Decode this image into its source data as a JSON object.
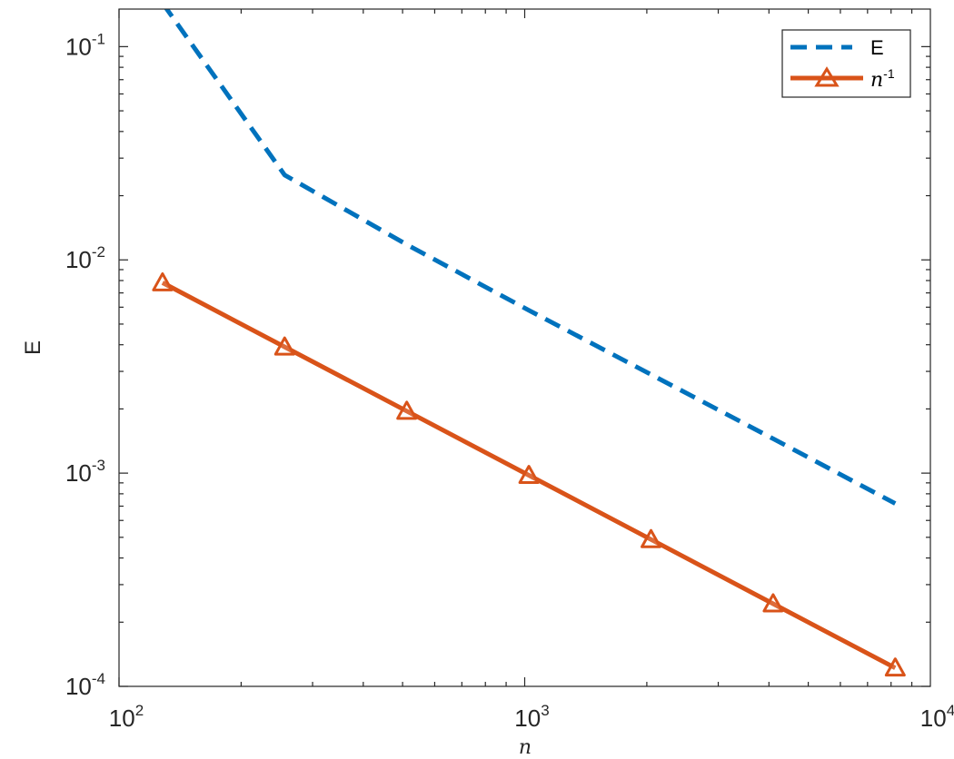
{
  "chart_data": {
    "type": "line",
    "xscale": "log",
    "yscale": "log",
    "xlim": [
      100,
      10000
    ],
    "ylim": [
      0.0001,
      0.15
    ],
    "xlabel": "n",
    "ylabel": "E",
    "x_ticks": [
      {
        "base": "10",
        "exp": "2",
        "value": 100
      },
      {
        "base": "10",
        "exp": "3",
        "value": 1000
      },
      {
        "base": "10",
        "exp": "4",
        "value": 10000
      }
    ],
    "y_ticks": [
      {
        "base": "10",
        "exp": "-4",
        "value": 0.0001
      },
      {
        "base": "10",
        "exp": "-3",
        "value": 0.001
      },
      {
        "base": "10",
        "exp": "-2",
        "value": 0.01
      },
      {
        "base": "10",
        "exp": "-1",
        "value": 0.1
      }
    ],
    "grid": false,
    "legend_position": "top-right",
    "series": [
      {
        "name": "E",
        "color": "#0072BD",
        "line_style": "dashed",
        "marker": "none",
        "x": [
          128,
          256,
          512,
          1024,
          2048,
          4096,
          8192
        ],
        "y": [
          0.16,
          0.025,
          0.0118,
          0.0058,
          0.0029,
          0.00145,
          0.00072
        ]
      },
      {
        "name": "n^-1",
        "legend_base": "n",
        "legend_exp": "-1",
        "color": "#D95319",
        "line_style": "solid",
        "marker": "triangle",
        "x": [
          128,
          256,
          512,
          1024,
          2048,
          4096,
          8192
        ],
        "y": [
          0.0078125,
          0.00390625,
          0.001953125,
          0.0009765625,
          0.00048828125,
          0.000244140625,
          0.0001220703125
        ]
      }
    ]
  }
}
